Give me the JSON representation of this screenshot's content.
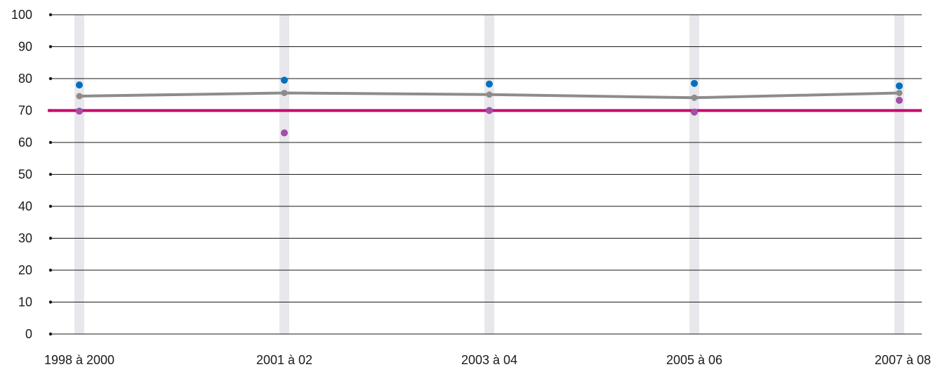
{
  "chart_data": {
    "type": "line",
    "categories": [
      "1998 à 2000",
      "2001 à 02",
      "2003 à 04",
      "2005 à 06",
      "2007 à 08"
    ],
    "ylim": [
      0,
      100
    ],
    "yticks": [
      0,
      10,
      20,
      30,
      40,
      50,
      60,
      70,
      80,
      90,
      100
    ],
    "grid": true,
    "reference_line": {
      "value": 70,
      "color": "#c8006e"
    },
    "series": [
      {
        "kind": "line",
        "color": "#8c8c8c",
        "values": [
          74.5,
          75.5,
          75.0,
          74.0,
          75.5
        ]
      },
      {
        "kind": "points",
        "color": "#0070c0",
        "values": [
          78.0,
          79.5,
          78.3,
          78.5,
          77.7
        ]
      },
      {
        "kind": "points",
        "color": "#a24fa8",
        "values": [
          69.8,
          63.0,
          70.0,
          69.5,
          73.2
        ]
      }
    ],
    "category_band_color": "#e8e8ec"
  }
}
